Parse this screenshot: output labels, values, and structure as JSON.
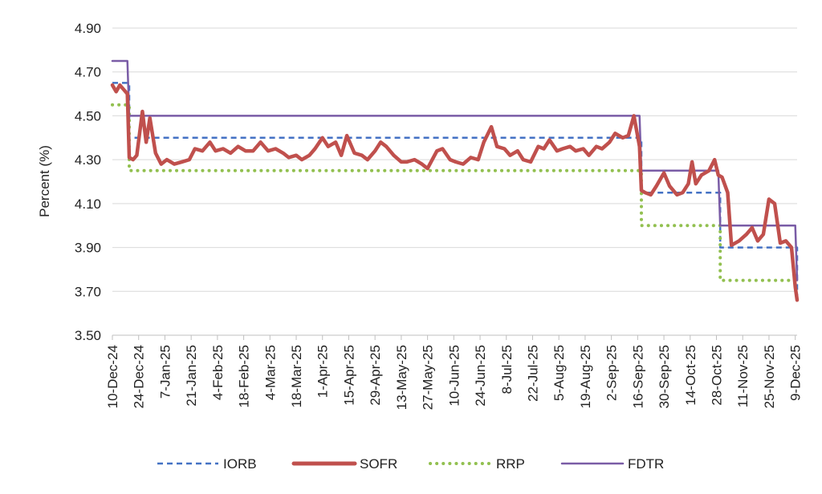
{
  "chart_data": {
    "type": "line",
    "title": "",
    "xlabel": "",
    "ylabel": "Percent (%)",
    "ylim": [
      3.5,
      4.9
    ],
    "yticks": [
      "4.90",
      "4.70",
      "4.50",
      "4.30",
      "4.10",
      "3.90",
      "3.70",
      "3.50"
    ],
    "xlim": [
      "2024-12-10",
      "2025-12-10"
    ],
    "xticks": [
      {
        "date": "2024-12-10",
        "label": "10-Dec-24"
      },
      {
        "date": "2024-12-24",
        "label": "24-Dec-24"
      },
      {
        "date": "2025-01-07",
        "label": "7-Jan-25"
      },
      {
        "date": "2025-01-21",
        "label": "21-Jan-25"
      },
      {
        "date": "2025-02-04",
        "label": "4-Feb-25"
      },
      {
        "date": "2025-02-18",
        "label": "18-Feb-25"
      },
      {
        "date": "2025-03-04",
        "label": "4-Mar-25"
      },
      {
        "date": "2025-03-18",
        "label": "18-Mar-25"
      },
      {
        "date": "2025-04-01",
        "label": "1-Apr-25"
      },
      {
        "date": "2025-04-15",
        "label": "15-Apr-25"
      },
      {
        "date": "2025-04-29",
        "label": "29-Apr-25"
      },
      {
        "date": "2025-05-13",
        "label": "13-May-25"
      },
      {
        "date": "2025-05-27",
        "label": "27-May-25"
      },
      {
        "date": "2025-06-10",
        "label": "10-Jun-25"
      },
      {
        "date": "2025-06-24",
        "label": "24-Jun-25"
      },
      {
        "date": "2025-07-08",
        "label": "8-Jul-25"
      },
      {
        "date": "2025-07-22",
        "label": "22-Jul-25"
      },
      {
        "date": "2025-08-05",
        "label": "5-Aug-25"
      },
      {
        "date": "2025-08-19",
        "label": "19-Aug-25"
      },
      {
        "date": "2025-09-02",
        "label": "2-Sep-25"
      },
      {
        "date": "2025-09-16",
        "label": "16-Sep-25"
      },
      {
        "date": "2025-09-30",
        "label": "30-Sep-25"
      },
      {
        "date": "2025-10-14",
        "label": "14-Oct-25"
      },
      {
        "date": "2025-10-28",
        "label": "28-Oct-25"
      },
      {
        "date": "2025-11-11",
        "label": "11-Nov-25"
      },
      {
        "date": "2025-11-25",
        "label": "25-Nov-25"
      },
      {
        "date": "2025-12-09",
        "label": "9-Dec-25"
      }
    ],
    "grid": true,
    "legend_position": "bottom",
    "series": [
      {
        "name": "IORB",
        "color": "#4472C4",
        "style": "dashed",
        "points": [
          [
            "2024-12-10",
            4.65
          ],
          [
            "2024-12-19",
            4.65
          ],
          [
            "2024-12-19",
            4.4
          ],
          [
            "2025-09-18",
            4.4
          ],
          [
            "2025-09-18",
            4.15
          ],
          [
            "2025-10-30",
            4.15
          ],
          [
            "2025-10-30",
            3.9
          ],
          [
            "2025-12-10",
            3.9
          ],
          [
            "2025-12-10",
            3.65
          ]
        ]
      },
      {
        "name": "SOFR",
        "color": "#C0504D",
        "style": "solid",
        "points": [
          [
            "2024-12-10",
            4.64
          ],
          [
            "2024-12-12",
            4.61
          ],
          [
            "2024-12-14",
            4.64
          ],
          [
            "2024-12-16",
            4.62
          ],
          [
            "2024-12-18",
            4.6
          ],
          [
            "2024-12-19",
            4.31
          ],
          [
            "2024-12-21",
            4.3
          ],
          [
            "2024-12-23",
            4.32
          ],
          [
            "2024-12-26",
            4.52
          ],
          [
            "2024-12-28",
            4.38
          ],
          [
            "2024-12-30",
            4.49
          ],
          [
            "2025-01-02",
            4.33
          ],
          [
            "2025-01-05",
            4.28
          ],
          [
            "2025-01-08",
            4.3
          ],
          [
            "2025-01-12",
            4.28
          ],
          [
            "2025-01-16",
            4.29
          ],
          [
            "2025-01-20",
            4.3
          ],
          [
            "2025-01-23",
            4.35
          ],
          [
            "2025-01-27",
            4.34
          ],
          [
            "2025-01-31",
            4.38
          ],
          [
            "2025-02-03",
            4.34
          ],
          [
            "2025-02-07",
            4.35
          ],
          [
            "2025-02-11",
            4.33
          ],
          [
            "2025-02-15",
            4.36
          ],
          [
            "2025-02-19",
            4.34
          ],
          [
            "2025-02-23",
            4.34
          ],
          [
            "2025-02-27",
            4.38
          ],
          [
            "2025-03-03",
            4.34
          ],
          [
            "2025-03-07",
            4.35
          ],
          [
            "2025-03-11",
            4.33
          ],
          [
            "2025-03-14",
            4.31
          ],
          [
            "2025-03-18",
            4.32
          ],
          [
            "2025-03-21",
            4.3
          ],
          [
            "2025-03-25",
            4.32
          ],
          [
            "2025-03-28",
            4.35
          ],
          [
            "2025-04-01",
            4.4
          ],
          [
            "2025-04-04",
            4.36
          ],
          [
            "2025-04-08",
            4.38
          ],
          [
            "2025-04-11",
            4.32
          ],
          [
            "2025-04-14",
            4.41
          ],
          [
            "2025-04-18",
            4.33
          ],
          [
            "2025-04-22",
            4.32
          ],
          [
            "2025-04-25",
            4.3
          ],
          [
            "2025-04-29",
            4.34
          ],
          [
            "2025-05-02",
            4.38
          ],
          [
            "2025-05-05",
            4.36
          ],
          [
            "2025-05-09",
            4.32
          ],
          [
            "2025-05-13",
            4.29
          ],
          [
            "2025-05-16",
            4.29
          ],
          [
            "2025-05-20",
            4.3
          ],
          [
            "2025-05-24",
            4.28
          ],
          [
            "2025-05-27",
            4.26
          ],
          [
            "2025-06-01",
            4.34
          ],
          [
            "2025-06-04",
            4.35
          ],
          [
            "2025-06-08",
            4.3
          ],
          [
            "2025-06-11",
            4.29
          ],
          [
            "2025-06-15",
            4.28
          ],
          [
            "2025-06-19",
            4.31
          ],
          [
            "2025-06-23",
            4.3
          ],
          [
            "2025-06-26",
            4.38
          ],
          [
            "2025-06-30",
            4.45
          ],
          [
            "2025-07-03",
            4.36
          ],
          [
            "2025-07-07",
            4.35
          ],
          [
            "2025-07-10",
            4.32
          ],
          [
            "2025-07-14",
            4.34
          ],
          [
            "2025-07-17",
            4.3
          ],
          [
            "2025-07-21",
            4.29
          ],
          [
            "2025-07-25",
            4.36
          ],
          [
            "2025-07-28",
            4.35
          ],
          [
            "2025-07-31",
            4.39
          ],
          [
            "2025-08-04",
            4.34
          ],
          [
            "2025-08-07",
            4.35
          ],
          [
            "2025-08-11",
            4.36
          ],
          [
            "2025-08-14",
            4.34
          ],
          [
            "2025-08-18",
            4.35
          ],
          [
            "2025-08-21",
            4.32
          ],
          [
            "2025-08-25",
            4.36
          ],
          [
            "2025-08-28",
            4.35
          ],
          [
            "2025-09-01",
            4.38
          ],
          [
            "2025-09-04",
            4.42
          ],
          [
            "2025-09-08",
            4.4
          ],
          [
            "2025-09-11",
            4.41
          ],
          [
            "2025-09-14",
            4.5
          ],
          [
            "2025-09-17",
            4.36
          ],
          [
            "2025-09-18",
            4.16
          ],
          [
            "2025-09-20",
            4.15
          ],
          [
            "2025-09-23",
            4.14
          ],
          [
            "2025-09-26",
            4.18
          ],
          [
            "2025-09-30",
            4.24
          ],
          [
            "2025-10-03",
            4.18
          ],
          [
            "2025-10-07",
            4.14
          ],
          [
            "2025-10-10",
            4.15
          ],
          [
            "2025-10-13",
            4.19
          ],
          [
            "2025-10-15",
            4.29
          ],
          [
            "2025-10-17",
            4.19
          ],
          [
            "2025-10-20",
            4.23
          ],
          [
            "2025-10-24",
            4.25
          ],
          [
            "2025-10-27",
            4.3
          ],
          [
            "2025-10-29",
            4.23
          ],
          [
            "2025-10-31",
            4.22
          ],
          [
            "2025-11-03",
            4.15
          ],
          [
            "2025-11-05",
            3.91
          ],
          [
            "2025-11-09",
            3.93
          ],
          [
            "2025-11-13",
            3.96
          ],
          [
            "2025-11-16",
            3.99
          ],
          [
            "2025-11-19",
            3.93
          ],
          [
            "2025-11-22",
            3.96
          ],
          [
            "2025-11-25",
            4.12
          ],
          [
            "2025-11-28",
            4.1
          ],
          [
            "2025-12-01",
            3.92
          ],
          [
            "2025-12-04",
            3.93
          ],
          [
            "2025-12-07",
            3.9
          ],
          [
            "2025-12-09",
            3.72
          ],
          [
            "2025-12-10",
            3.66
          ]
        ]
      },
      {
        "name": "RRP",
        "color": "#92C050",
        "style": "dotted",
        "points": [
          [
            "2024-12-10",
            4.55
          ],
          [
            "2024-12-19",
            4.55
          ],
          [
            "2024-12-19",
            4.25
          ],
          [
            "2025-09-18",
            4.25
          ],
          [
            "2025-09-18",
            4.0
          ],
          [
            "2025-10-30",
            4.0
          ],
          [
            "2025-10-30",
            3.75
          ],
          [
            "2025-12-10",
            3.75
          ]
        ]
      },
      {
        "name": "FDTR",
        "color": "#7A5CA6",
        "style": "solid",
        "points": [
          [
            "2024-12-10",
            4.75
          ],
          [
            "2024-12-18",
            4.75
          ],
          [
            "2024-12-19",
            4.5
          ],
          [
            "2025-09-17",
            4.5
          ],
          [
            "2025-09-18",
            4.25
          ],
          [
            "2025-10-29",
            4.25
          ],
          [
            "2025-10-30",
            4.0
          ],
          [
            "2025-12-09",
            4.0
          ],
          [
            "2025-12-10",
            3.75
          ]
        ]
      }
    ]
  }
}
